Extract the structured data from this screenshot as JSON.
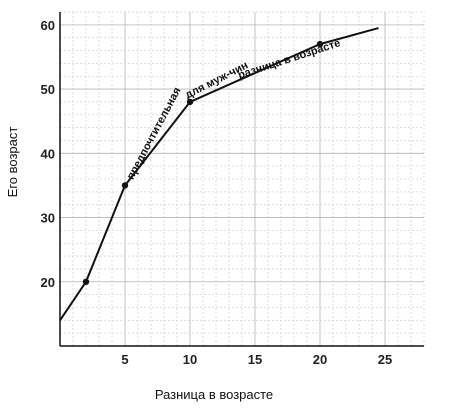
{
  "chart_data": {
    "type": "line",
    "xlabel": "Разница в возрасте",
    "ylabel": "Его возраст",
    "xlim": [
      0,
      28
    ],
    "ylim": [
      10,
      62
    ],
    "x_ticks": [
      5,
      10,
      15,
      20,
      25
    ],
    "y_ticks": [
      20,
      30,
      40,
      50,
      60
    ],
    "grid": true,
    "series": [
      {
        "x": [
          0,
          2,
          5,
          10,
          20,
          24.5
        ],
        "y": [
          14,
          20,
          35,
          48,
          57,
          59.5
        ],
        "markers": [
          false,
          true,
          true,
          true,
          true,
          false
        ]
      }
    ],
    "annotations": [
      {
        "text": "предпочтительная",
        "x": 5.6,
        "y": 35.8,
        "angle": -62
      },
      {
        "text": "для муж-чин",
        "x": 9.8,
        "y": 48.5,
        "angle": -27
      },
      {
        "text": "разница в возрасте",
        "x": 13.8,
        "y": 51.6,
        "angle": -18
      }
    ]
  }
}
